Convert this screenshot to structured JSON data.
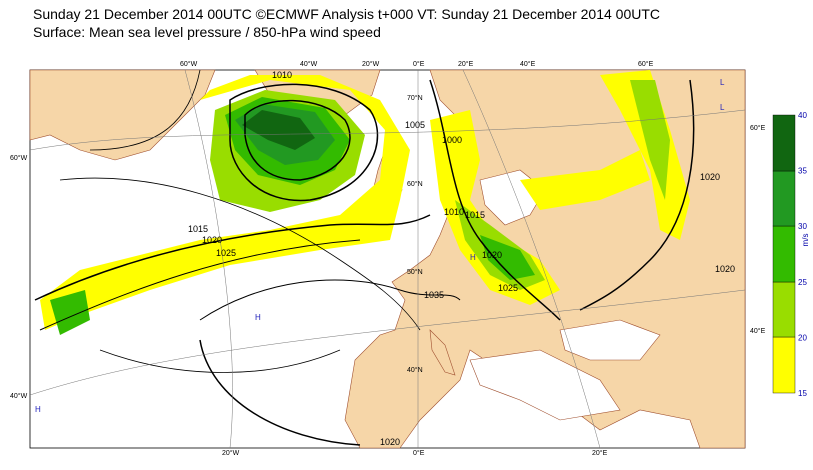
{
  "header": {
    "title": "Sunday 21 December 2014 00UTC ©ECMWF Analysis t+000 VT: Sunday 21 December 2014 00UTC",
    "subtitle": "Surface: Mean sea level pressure / 850-hPa wind speed"
  },
  "colorbar": {
    "unit": "m/s",
    "ticks": [
      "15",
      "20",
      "25",
      "30",
      "35",
      "40"
    ]
  },
  "graticule_labels": [
    "60°W",
    "40°W",
    "20°W",
    "0°E",
    "20°E",
    "40°E",
    "60°E",
    "60°W",
    "40°W",
    "20°W",
    "0°E",
    "20°E",
    "60°E",
    "40°E",
    "70°N",
    "60°N",
    "50°N",
    "40°N"
  ],
  "isobar_labels": [
    "1015",
    "1020",
    "1025",
    "1035",
    "1010",
    "1015",
    "1020",
    "1025",
    "1020",
    "1020",
    "1000",
    "1005",
    "1010",
    "1020"
  ],
  "pressure_centers": [
    "H",
    "H",
    "L",
    "L",
    "H"
  ]
}
